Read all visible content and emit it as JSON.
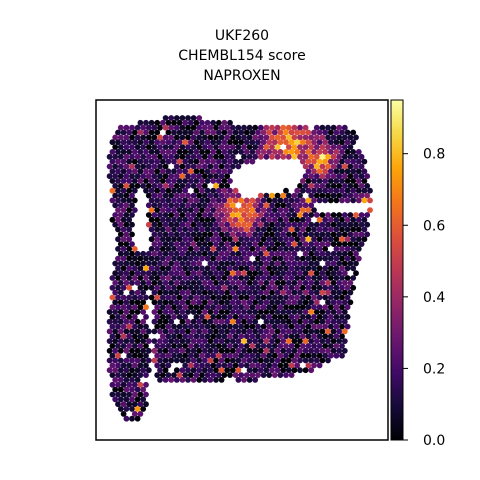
{
  "chart_data": {
    "type": "scatter",
    "subtype": "spatial spot map",
    "title_lines": [
      "UKF260",
      "CHEMBL154 score",
      "NAPROXEN"
    ],
    "colormap": "inferno",
    "colorbar": {
      "min": 0.0,
      "max": 0.95,
      "ticks": [
        0.0,
        0.2,
        0.4,
        0.6,
        0.8
      ],
      "tick_labels": [
        "0.0",
        "0.2",
        "0.4",
        "0.6",
        "0.8"
      ]
    },
    "axes_visible": false,
    "grid": false,
    "legend": "none",
    "value_summary": {
      "typical_value_range": [
        0.0,
        0.35
      ],
      "hotspot_value_range": [
        0.6,
        0.9
      ],
      "hotspot_region": "upper right",
      "approx_spot_count": 2300
    }
  }
}
